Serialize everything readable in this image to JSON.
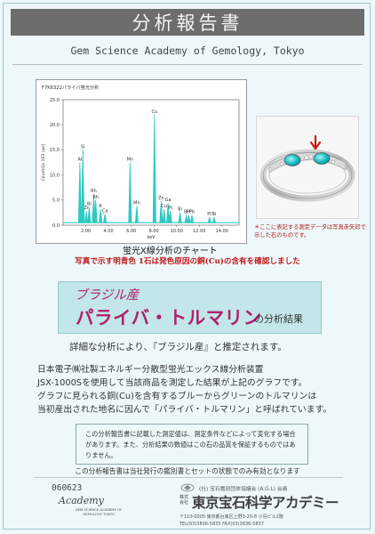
{
  "header": {
    "title": "分析報告書",
    "subtitle": "Gem Science Academy of Gemology, Tokyo"
  },
  "chart_data": {
    "type": "line",
    "title": "F7K6322パライバ蛍光分析",
    "ylabel": "Counts[x 1E3 cps]",
    "xlabel": "keV",
    "xlim": [
      0,
      15.5
    ],
    "ylim": [
      0,
      25
    ],
    "x_ticks": [
      "2.00",
      "4.00",
      "6.00",
      "8.00",
      "10.00",
      "12.00",
      "14.00"
    ],
    "y_ticks": [
      "0.0",
      "5.0",
      "10.0",
      "15.0",
      "20.0",
      "25.0"
    ],
    "peaks": [
      {
        "x": 1.48,
        "y": 12.5,
        "label": "Al"
      },
      {
        "x": 1.74,
        "y": 15.0,
        "label": "Si"
      },
      {
        "x": 2.04,
        "y": 2.8,
        "label": "Zr"
      },
      {
        "x": 2.3,
        "y": 3.6,
        "label": "Bi"
      },
      {
        "x": 2.7,
        "y": 6.2,
        "label": "Rh"
      },
      {
        "x": 2.87,
        "y": 5.0,
        "label": "Rh"
      },
      {
        "x": 3.3,
        "y": 3.2,
        "label": "K"
      },
      {
        "x": 3.69,
        "y": 2.2,
        "label": "Ca"
      },
      {
        "x": 5.9,
        "y": 12.5,
        "label": "Mn"
      },
      {
        "x": 6.49,
        "y": 3.8,
        "label": "Mn"
      },
      {
        "x": 8.05,
        "y": 22.0,
        "label": "Cu"
      },
      {
        "x": 8.64,
        "y": 4.8,
        "label": "Zn"
      },
      {
        "x": 8.9,
        "y": 3.2,
        "label": "Cu"
      },
      {
        "x": 9.25,
        "y": 4.4,
        "label": "Ga"
      },
      {
        "x": 9.45,
        "y": 2.8,
        "label": "Pt"
      },
      {
        "x": 10.3,
        "y": 2.6,
        "label": "Bi"
      },
      {
        "x": 10.85,
        "y": 2.0,
        "label": "Bi"
      },
      {
        "x": 11.07,
        "y": 2.0,
        "label": "Pt"
      },
      {
        "x": 11.35,
        "y": 2.0,
        "label": "Pb"
      },
      {
        "x": 12.9,
        "y": 1.6,
        "label": "Pt"
      },
      {
        "x": 13.3,
        "y": 1.6,
        "label": "Bi"
      }
    ],
    "caption": "蛍光X線分析のチャート"
  },
  "notes": {
    "chart_red": "写真で示す明青色 1石は発色原因の銅(Cu)の含有を確認しました",
    "photo_red": "＊ここに表記する測定データは写真赤矢印で示した石のものです。"
  },
  "result": {
    "origin": "ブラジル産",
    "name": "パライバ・トルマリン",
    "suffix": "の分析結果"
  },
  "estimate": "詳細な分析により、『ブラジル産』と推定されます。",
  "body_lines": [
    "日本電子㈱社製エネルギー分散型蛍光エックス線分析装置",
    "JSX-1000Sを使用して当該商品を測定した結果が上記のグラフです。",
    "グラフに見られる銅(Cu)を含有するブルーからグリーンのトルマリンは",
    "当初産出された地名に因んで「パライバ・トルマリン」と呼ばれています。"
  ],
  "disclaimer": "この分析報告書に記載した測定値は、測定条件などによって変化する場合があります。また、分析結果の数値はこの石の品質を保証するものではありません。",
  "footer_note": "この分析報告書は当社発行の鑑別書とセットの状態でのみ有効となります",
  "footer": {
    "cert_no": "060623",
    "logo_name": "Academy",
    "logo_sub": "GEM SCIENCE ACADEMY OF GEMOLOGY TOKYO",
    "association": "(社) 宝石鑑別団体協議会 (A.G.L) 会員",
    "corp_prefix": "株式会社",
    "corp_name": "東京宝石科学アカデミー",
    "address": "〒110-0005 東京都台東区上野3-20-8 小島ビル2階",
    "tel": "TEL(03)3836-5835 FAX(03)3836-5837"
  },
  "colors": {
    "peak": "#2fc9c2",
    "title_band": "#6d6d6d",
    "accent_text": "#b0206e",
    "red_note": "#c01818",
    "result_box": "#c3e6e8"
  }
}
